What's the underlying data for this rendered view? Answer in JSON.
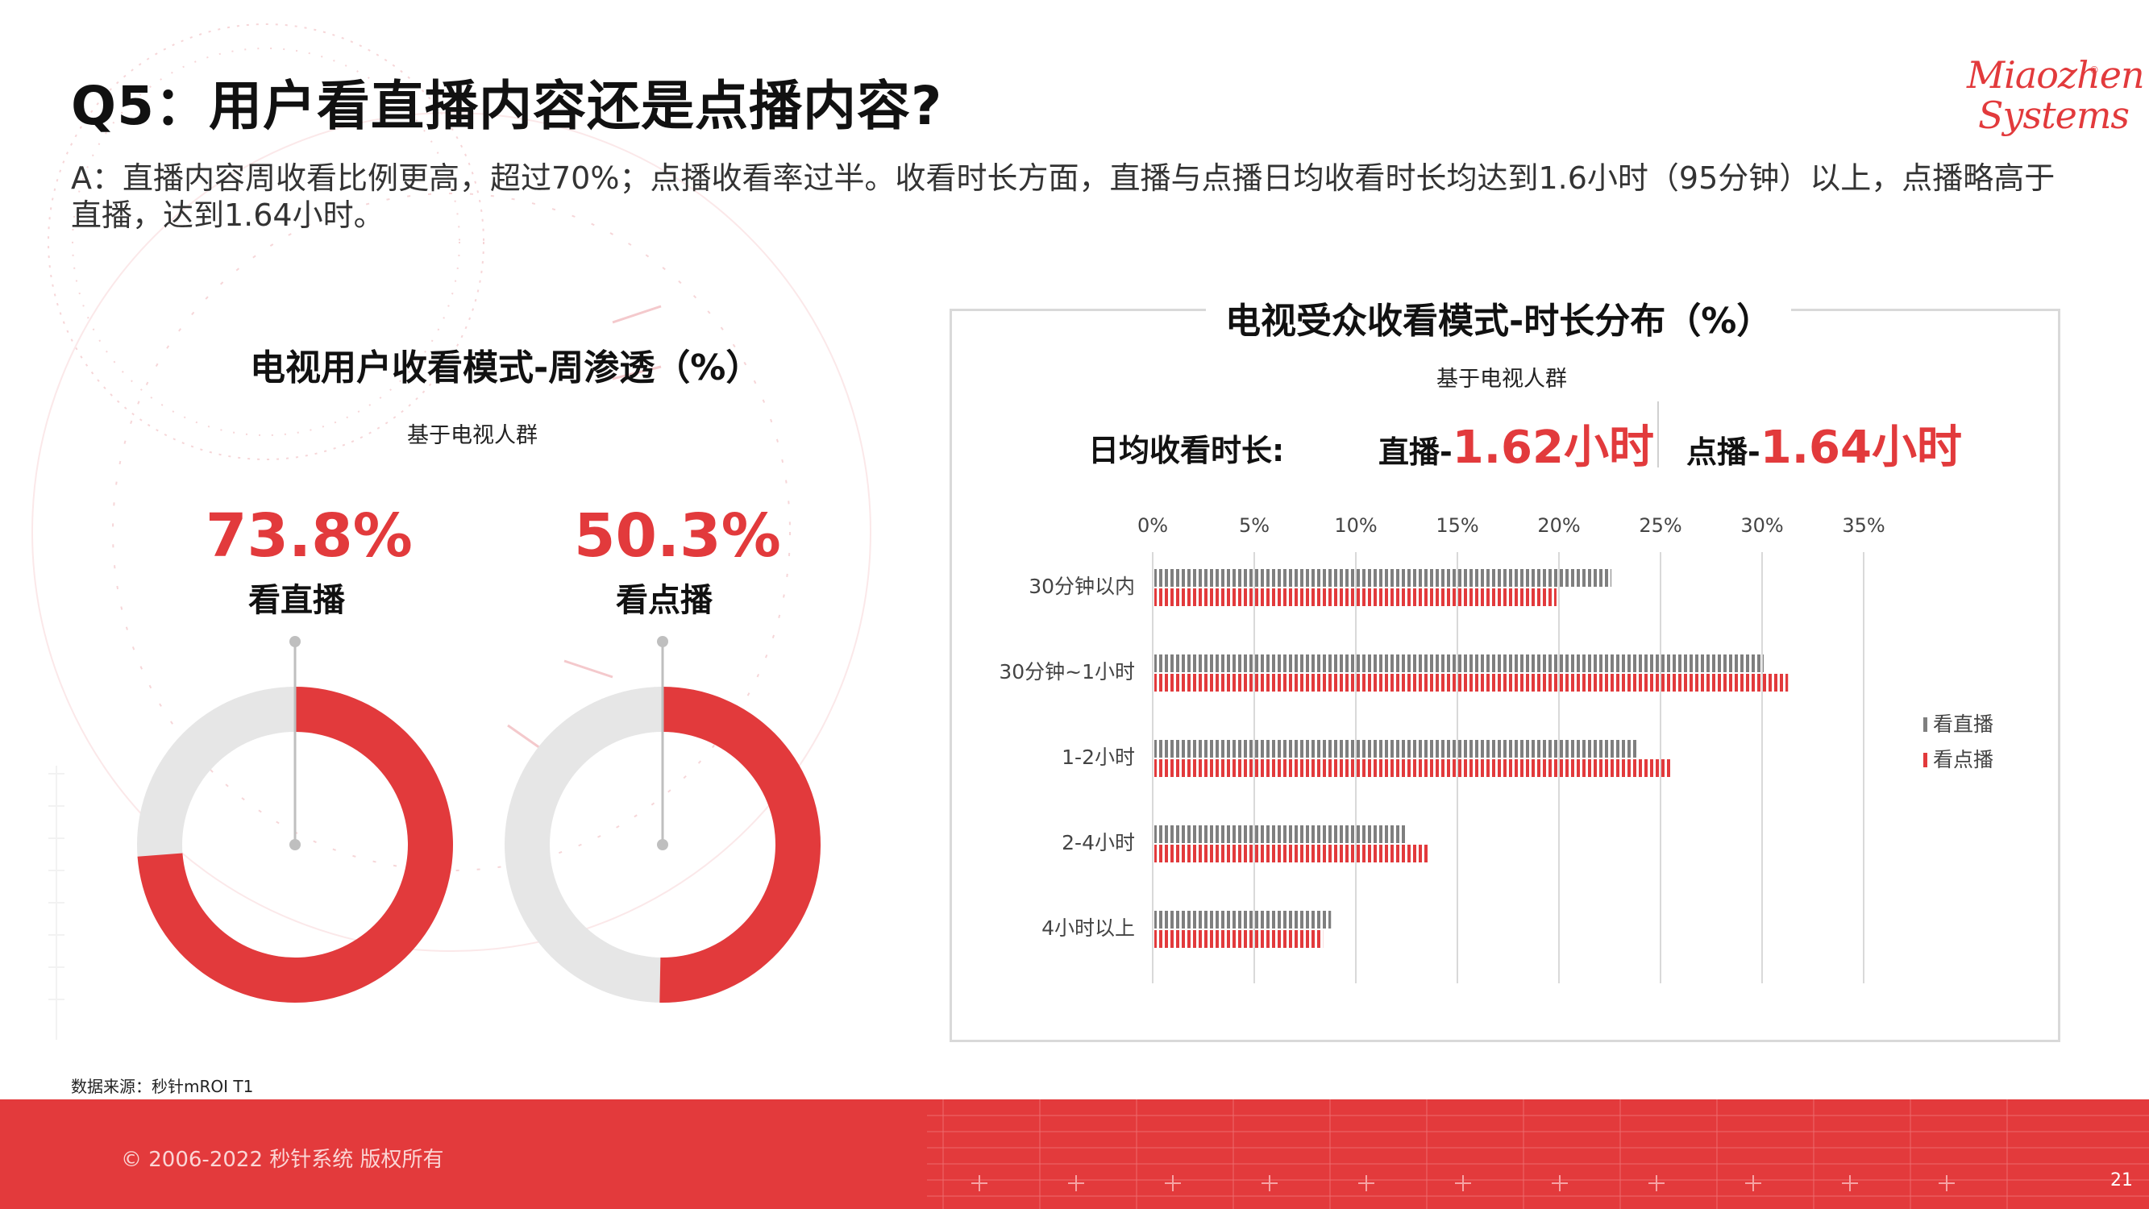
{
  "title": "Q5：用户看直播内容还是点播内容?",
  "answer": "A：直播内容周收看比例更高，超过70%；点播收看率过半。收看时长方面，直播与点播日均收看时长均达到1.6小时（95分钟）以上，点播略高于直播，达到1.64小时。",
  "logo": {
    "line1": "Miaozhen",
    "line2": "Systems",
    "reg": "®"
  },
  "left_section": {
    "title": "电视用户收看模式-周渗透（%）",
    "base": "基于电视人群",
    "live": {
      "value_text": "73.8%",
      "value": 73.8,
      "label": "看直播"
    },
    "vod": {
      "value_text": "50.3%",
      "value": 50.3,
      "label": "看点播"
    }
  },
  "right_section": {
    "title": "电视受众收看模式-时长分布（%）",
    "base": "基于电视人群",
    "daily_label": "日均收看时长:",
    "live": {
      "name": "直播-",
      "value": "1.62小时"
    },
    "vod": {
      "name": "点播-",
      "value": "1.64小时"
    }
  },
  "chart_data": {
    "type": "bar",
    "orientation": "horizontal",
    "categories": [
      "30分钟以内",
      "30分钟~1小时",
      "1-2小时",
      "2-4小时",
      "4小时以上"
    ],
    "series": [
      {
        "name": "看直播",
        "values": [
          22.5,
          30.0,
          23.8,
          12.4,
          8.7
        ],
        "color": "#7f7f7f"
      },
      {
        "name": "看点播",
        "values": [
          19.8,
          31.2,
          25.4,
          13.5,
          8.3
        ],
        "color": "#e23a3c"
      }
    ],
    "x_ticks": [
      "0%",
      "5%",
      "10%",
      "15%",
      "20%",
      "25%",
      "30%",
      "35%"
    ],
    "xlim": [
      0,
      35
    ],
    "grid": true,
    "legend": "right"
  },
  "colors": {
    "accent": "#e23a3c",
    "gray_bar": "#7f7f7f",
    "ring_bg": "#e6e6e6"
  },
  "source": "数据来源：秒针mROI T1",
  "footer": {
    "copyright": "© 2006-2022 秒针系统 版权所有",
    "page": "21"
  }
}
